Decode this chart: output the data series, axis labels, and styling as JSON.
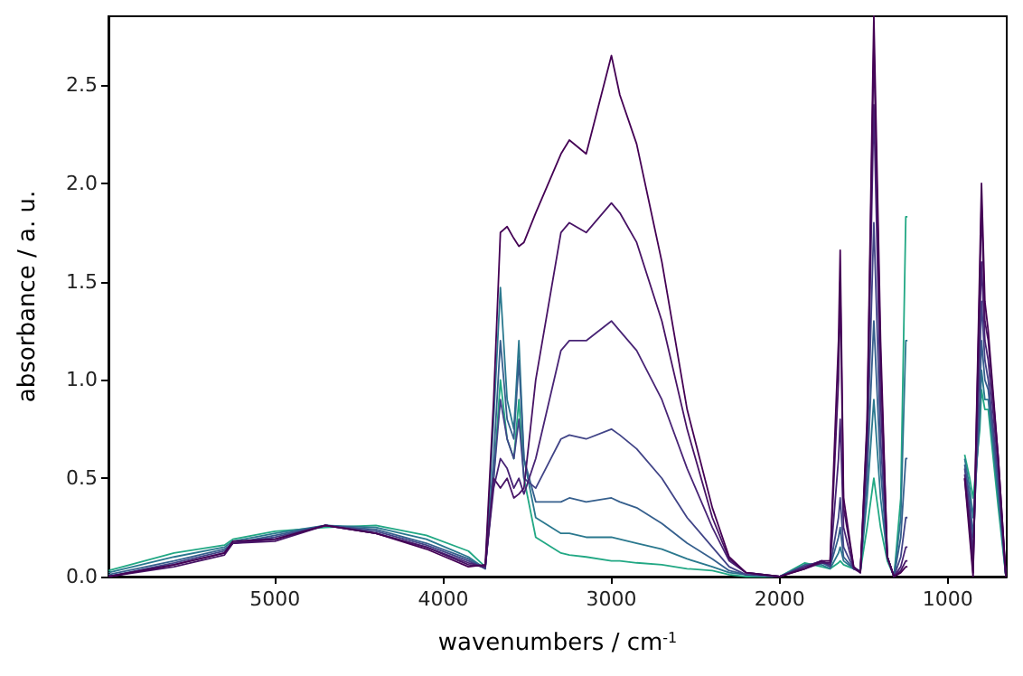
{
  "chart_data": {
    "type": "line",
    "xlabel": "wavenumbers / cm$^{-1}$",
    "ylabel": "absorbance / a. u.",
    "x": [
      5990,
      5600,
      5300,
      5250,
      5000,
      4700,
      4400,
      4100,
      3850,
      3750,
      3700,
      3660,
      3620,
      3580,
      3550,
      3520,
      3450,
      3300,
      3250,
      3150,
      3000,
      2950,
      2850,
      2700,
      2550,
      2400,
      2300,
      2200,
      2000,
      1850,
      1750,
      1700,
      1650,
      1640,
      1620,
      1560,
      1520,
      1480,
      1440,
      1400,
      1360,
      1320,
      1280,
      1250,
      1240,
      1100,
      900,
      870,
      850,
      810,
      800,
      780,
      760,
      700,
      655
    ],
    "series": [
      {
        "color": "#440154",
        "values": [
          0.0,
          0.06,
          0.12,
          0.18,
          0.19,
          0.26,
          0.22,
          0.14,
          0.05,
          0.06,
          0.9,
          1.75,
          1.78,
          1.72,
          1.68,
          1.7,
          1.85,
          2.15,
          2.22,
          2.15,
          2.65,
          2.45,
          2.2,
          1.6,
          0.85,
          0.35,
          0.1,
          0.02,
          0.0,
          0.04,
          0.08,
          0.08,
          1.2,
          1.66,
          0.4,
          0.05,
          0.02,
          0.8,
          2.85,
          1.2,
          0.1,
          0.0,
          0.02,
          0.05,
          0.05,
          null,
          0.5,
          0.2,
          0.0,
          1.6,
          2.0,
          1.4,
          1.25,
          0.6,
          0.0
        ]
      },
      {
        "color": "#471365",
        "values": [
          0.0,
          0.05,
          0.11,
          0.17,
          0.18,
          0.26,
          0.22,
          0.15,
          0.06,
          0.05,
          0.5,
          0.45,
          0.5,
          0.4,
          0.42,
          0.45,
          1.0,
          1.75,
          1.8,
          1.75,
          1.9,
          1.85,
          1.7,
          1.3,
          0.75,
          0.3,
          0.09,
          0.02,
          0.0,
          0.04,
          0.07,
          0.07,
          1.0,
          1.5,
          0.35,
          0.05,
          0.02,
          0.75,
          2.7,
          1.1,
          0.1,
          0.0,
          0.03,
          0.08,
          0.08,
          null,
          0.5,
          0.25,
          0.02,
          1.5,
          1.9,
          1.3,
          1.2,
          0.6,
          0.0
        ]
      },
      {
        "color": "#482475",
        "values": [
          0.0,
          0.06,
          0.12,
          0.17,
          0.19,
          0.26,
          0.22,
          0.15,
          0.07,
          0.05,
          0.45,
          0.6,
          0.55,
          0.45,
          0.5,
          0.42,
          0.6,
          1.15,
          1.2,
          1.2,
          1.3,
          1.25,
          1.15,
          0.9,
          0.55,
          0.25,
          0.08,
          0.02,
          0.0,
          0.05,
          0.08,
          0.06,
          0.6,
          0.8,
          0.25,
          0.04,
          0.02,
          0.7,
          2.4,
          0.9,
          0.1,
          0.0,
          0.05,
          0.15,
          0.15,
          null,
          0.52,
          0.3,
          0.05,
          1.3,
          1.6,
          1.2,
          1.1,
          0.55,
          0.0
        ]
      },
      {
        "color": "#414487",
        "values": [
          0.0,
          0.07,
          0.13,
          0.17,
          0.2,
          0.26,
          0.23,
          0.16,
          0.08,
          0.04,
          0.5,
          0.9,
          0.7,
          0.6,
          0.8,
          0.5,
          0.45,
          0.7,
          0.72,
          0.7,
          0.75,
          0.72,
          0.65,
          0.5,
          0.3,
          0.15,
          0.05,
          0.01,
          0.0,
          0.05,
          0.08,
          0.05,
          0.3,
          0.4,
          0.15,
          0.04,
          0.03,
          0.6,
          1.8,
          0.7,
          0.1,
          0.0,
          0.1,
          0.3,
          0.3,
          null,
          0.55,
          0.35,
          0.1,
          1.1,
          1.4,
          1.1,
          1.0,
          0.5,
          0.0
        ]
      },
      {
        "color": "#355f8d",
        "values": [
          0.01,
          0.08,
          0.14,
          0.17,
          0.21,
          0.26,
          0.24,
          0.17,
          0.09,
          0.04,
          0.6,
          1.2,
          0.8,
          0.7,
          1.1,
          0.6,
          0.38,
          0.38,
          0.4,
          0.38,
          0.4,
          0.38,
          0.35,
          0.27,
          0.17,
          0.09,
          0.03,
          0.01,
          0.0,
          0.06,
          0.07,
          0.05,
          0.2,
          0.25,
          0.1,
          0.04,
          0.03,
          0.5,
          1.3,
          0.55,
          0.1,
          0.0,
          0.2,
          0.6,
          0.6,
          null,
          0.57,
          0.4,
          0.2,
          0.9,
          1.2,
          1.0,
          0.95,
          0.45,
          0.0
        ]
      },
      {
        "color": "#2a788e",
        "values": [
          0.02,
          0.1,
          0.15,
          0.18,
          0.22,
          0.26,
          0.25,
          0.19,
          0.1,
          0.04,
          0.8,
          1.47,
          0.9,
          0.75,
          1.2,
          0.6,
          0.3,
          0.22,
          0.22,
          0.2,
          0.2,
          0.19,
          0.17,
          0.14,
          0.09,
          0.05,
          0.02,
          0.01,
          0.0,
          0.06,
          0.06,
          0.04,
          0.12,
          0.15,
          0.08,
          0.04,
          0.03,
          0.4,
          0.9,
          0.4,
          0.1,
          0.0,
          0.3,
          1.2,
          1.2,
          null,
          0.6,
          0.45,
          0.3,
          0.8,
          1.05,
          0.9,
          0.9,
          0.4,
          0.0
        ]
      },
      {
        "color": "#22a884",
        "values": [
          0.03,
          0.12,
          0.16,
          0.19,
          0.23,
          0.25,
          0.26,
          0.21,
          0.13,
          0.05,
          0.5,
          1.0,
          0.7,
          0.6,
          0.9,
          0.5,
          0.2,
          0.12,
          0.11,
          0.1,
          0.08,
          0.08,
          0.07,
          0.06,
          0.04,
          0.03,
          0.01,
          0.0,
          0.0,
          0.07,
          0.05,
          0.04,
          0.07,
          0.08,
          0.06,
          0.04,
          0.03,
          0.25,
          0.5,
          0.25,
          0.08,
          0.0,
          0.4,
          1.83,
          1.83,
          null,
          0.62,
          0.5,
          0.4,
          0.75,
          0.95,
          0.85,
          0.85,
          0.35,
          0.0
        ]
      }
    ],
    "xlim": [
      5990,
      650
    ],
    "xticks": [
      5000,
      4000,
      3000,
      2000,
      1000
    ],
    "ylim": [
      0,
      2.85
    ],
    "yticks": [
      {
        "value": 0,
        "label": "0.0"
      },
      0.5,
      {
        "value": 1,
        "label": "1.0"
      },
      1.5,
      {
        "value": 2,
        "label": "2.0"
      },
      2.5
    ],
    "grid": false,
    "line_style": "solid",
    "marker": "none"
  }
}
